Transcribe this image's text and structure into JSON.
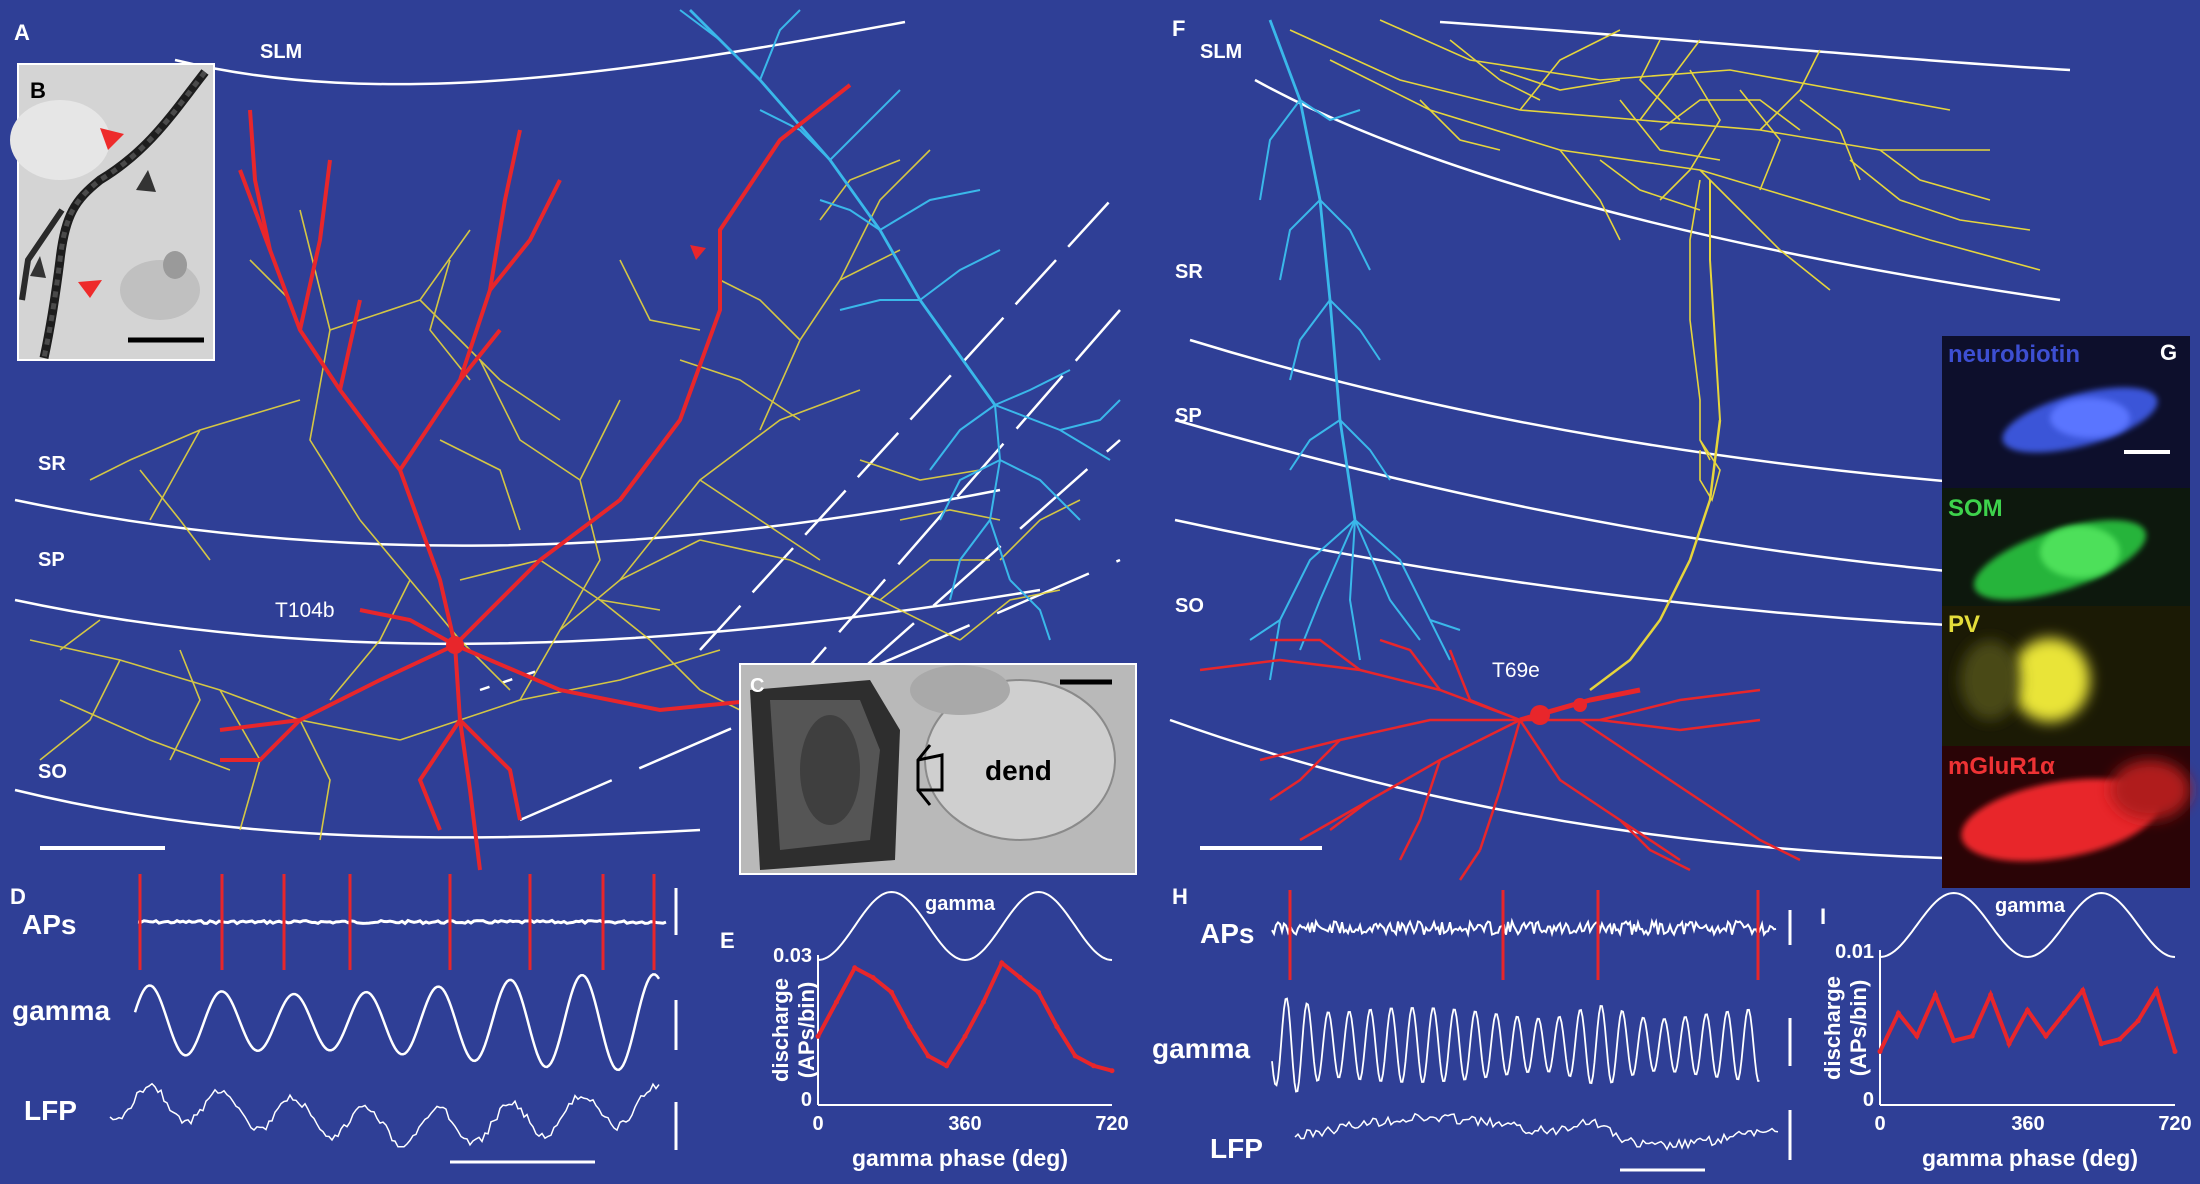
{
  "panels": {
    "A": "A",
    "B": "B",
    "C": "C",
    "D": "D",
    "E": "E",
    "F": "F",
    "G": "G",
    "H": "H",
    "I": "I"
  },
  "layers_left": {
    "slm": "SLM",
    "sr": "SR",
    "sp": "SP",
    "so": "SO"
  },
  "layers_right": {
    "slm": "SLM",
    "sr": "SR",
    "sp": "SP",
    "so": "SO"
  },
  "cells": {
    "left": "T104b",
    "right": "T69e"
  },
  "panel_c": {
    "dend": "dend"
  },
  "panel_g": {
    "neurobiotin": "neurobiotin",
    "som": "SOM",
    "pv": "PV",
    "mglur": "mGluR1α"
  },
  "traces": {
    "aps": "APs",
    "gamma": "gamma",
    "lfp": "LFP"
  },
  "colors": {
    "background": "#2f3f96",
    "red_cell": "#e8262b",
    "yellow_axon": "#e6d53c",
    "blue_cell": "#3ab8ea",
    "layer_line": "#ffffff"
  },
  "chart_data": [
    {
      "panel": "E",
      "type": "line",
      "title": "gamma",
      "xlabel": "gamma phase (deg)",
      "ylabel": "discharge\n(APs/bin)",
      "xlim": [
        0,
        720
      ],
      "ylim": [
        0,
        0.03
      ],
      "xticks": [
        "0",
        "360",
        "720"
      ],
      "yticks": [
        "0",
        "0.03"
      ],
      "x": [
        0,
        45,
        90,
        135,
        180,
        225,
        270,
        315,
        360,
        405,
        450,
        495,
        540,
        585,
        630,
        675,
        720
      ],
      "series": [
        {
          "values": [
            0.014,
            0.021,
            0.028,
            0.026,
            0.023,
            0.016,
            0.01,
            0.008,
            0.014,
            0.021,
            0.029,
            0.026,
            0.023,
            0.016,
            0.01,
            0.008,
            0.007
          ]
        }
      ]
    },
    {
      "panel": "I",
      "type": "line",
      "title": "gamma",
      "xlabel": "gamma phase (deg)",
      "ylabel": "discharge\n(APs/bin)",
      "xlim": [
        0,
        720
      ],
      "ylim": [
        0,
        0.01
      ],
      "xticks": [
        "0",
        "360",
        "720"
      ],
      "yticks": [
        "0",
        "0.01"
      ],
      "x": [
        0,
        45,
        90,
        135,
        180,
        225,
        270,
        315,
        360,
        405,
        450,
        495,
        540,
        585,
        630,
        675,
        720
      ],
      "series": [
        {
          "values": [
            0.0035,
            0.006,
            0.0045,
            0.0072,
            0.0042,
            0.0045,
            0.0072,
            0.004,
            0.0062,
            0.0045,
            0.006,
            0.0075,
            0.004,
            0.0043,
            0.0055,
            0.0075,
            0.0035
          ]
        }
      ]
    }
  ]
}
